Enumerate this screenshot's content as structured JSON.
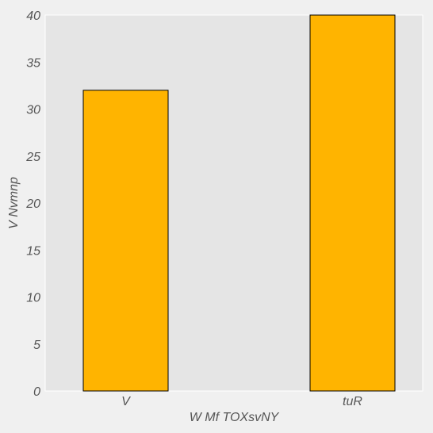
{
  "chart_data": {
    "type": "bar",
    "categories": [
      "V",
      "tuR"
    ],
    "values": [
      32,
      40
    ],
    "title": "",
    "xlabel": "W Mf TOXsvNY",
    "ylabel": "V Nvmnp",
    "ylim": [
      0,
      40
    ],
    "yticks": [
      0,
      5,
      10,
      15,
      20,
      25,
      30,
      35,
      40
    ],
    "grid": false,
    "colors": {
      "background": "#f0f0f0",
      "plot_area": "#e5e5e5",
      "bar_fill": "#ffb400",
      "bar_edge": "#000000",
      "text": "#555555"
    }
  }
}
